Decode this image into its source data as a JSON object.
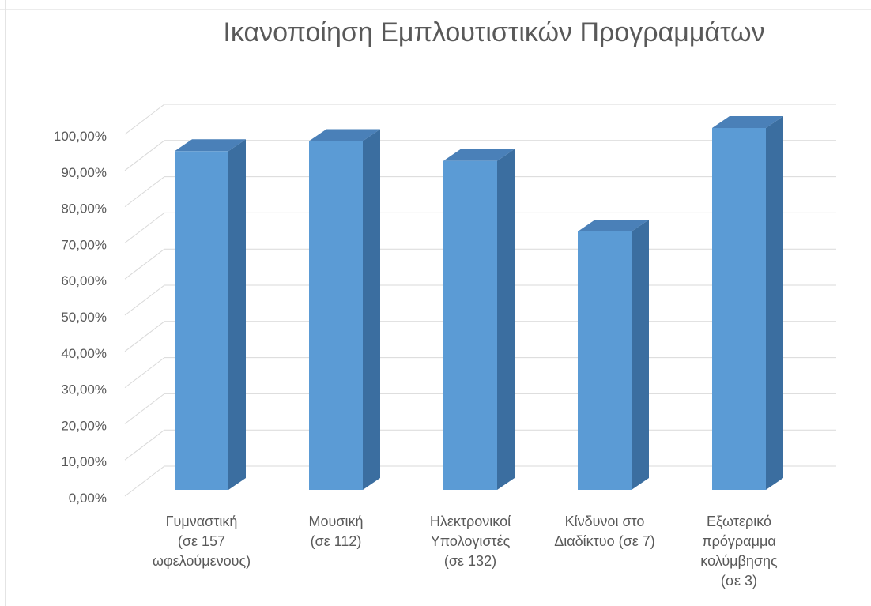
{
  "chart_data": {
    "type": "bar",
    "title": "Ικανοποίηση Εμπλουτιστικών Προγραμμάτων",
    "categories": [
      [
        "Γυμναστική",
        "(σε 157",
        "ωφελούμενους)"
      ],
      [
        "Μουσική",
        "(σε 112)"
      ],
      [
        "Ηλεκτρονικοί",
        "Υπολογιστές",
        "(σε 132)"
      ],
      [
        "Κίνδυνοι στο",
        "Διαδίκτυο (σε 7)"
      ],
      [
        "Εξωτερικό",
        "πρόγραμμα",
        "κολύμβησης",
        "(σε 3)"
      ]
    ],
    "values": [
      93.6,
      96.4,
      90.9,
      71.4,
      100.0
    ],
    "ylim": [
      0,
      100
    ],
    "yticks": [
      "0,00%",
      "10,00%",
      "20,00%",
      "30,00%",
      "40,00%",
      "50,00%",
      "60,00%",
      "70,00%",
      "80,00%",
      "90,00%",
      "100,00%"
    ],
    "grid": true,
    "style": "3d-column",
    "colors": {
      "front": "#5b9bd5",
      "side": "#3b6ea0",
      "top": "#4a80b8",
      "grid": "#d9d9d9",
      "text": "#595959"
    }
  }
}
